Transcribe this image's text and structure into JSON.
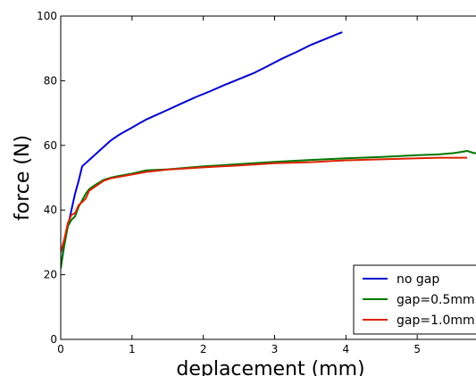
{
  "chart_data": {
    "type": "line",
    "xlabel": "deplacement (mm)",
    "ylabel": "force (N)",
    "xlim": [
      0,
      6
    ],
    "ylim": [
      0,
      100
    ],
    "x_ticks": [
      "0",
      "1",
      "2",
      "3",
      "4",
      "5"
    ],
    "y_ticks": [
      "0",
      "20",
      "40",
      "60",
      "80",
      "100"
    ],
    "grid": false,
    "legend_position": "bottom-right",
    "series": [
      {
        "name": "no gap",
        "color": "#0000cc",
        "x": [
          0,
          0.05,
          0.1,
          0.15,
          0.2,
          0.25,
          0.3,
          0.35,
          0.4,
          0.5,
          0.6,
          0.7,
          0.8,
          0.9,
          1.0,
          1.1,
          1.2,
          1.3,
          1.5,
          1.7,
          1.9,
          2.1,
          2.3,
          2.5,
          2.7,
          2.9,
          3.1,
          3.3,
          3.5,
          3.7,
          3.9,
          3.95
        ],
        "y": [
          22,
          30,
          35,
          40,
          45,
          49,
          53.5,
          54.5,
          55.5,
          57.5,
          59.5,
          61.5,
          63,
          64.3,
          65.5,
          66.8,
          68,
          69,
          71,
          73,
          75,
          76.8,
          78.7,
          80.5,
          82.3,
          84.5,
          86.8,
          88.8,
          91,
          92.8,
          94.6,
          95
        ]
      },
      {
        "name": "gap=0.5mm",
        "color": "#007700",
        "x": [
          0,
          0.05,
          0.1,
          0.15,
          0.2,
          0.25,
          0.3,
          0.35,
          0.4,
          0.5,
          0.6,
          0.7,
          0.8,
          1.0,
          1.2,
          1.5,
          2.0,
          2.5,
          3.0,
          3.5,
          4.0,
          4.5,
          5.0,
          5.3,
          5.5,
          5.6,
          5.7,
          5.8,
          5.9
        ],
        "y": [
          22,
          29,
          35,
          37,
          38,
          41,
          43,
          45,
          46.5,
          48,
          49.3,
          50,
          50.5,
          51.3,
          52.3,
          52.6,
          53.5,
          54.2,
          54.9,
          55.5,
          56,
          56.4,
          57,
          57.2,
          57.6,
          57.9,
          58.3,
          57.6,
          57.8
        ]
      },
      {
        "name": "gap=1.0mm",
        "color": "#dd2200",
        "x": [
          0,
          0.05,
          0.1,
          0.15,
          0.2,
          0.25,
          0.3,
          0.35,
          0.4,
          0.5,
          0.6,
          0.7,
          0.8,
          1.0,
          1.2,
          1.5,
          2.0,
          2.5,
          3.0,
          3.5,
          4.0,
          4.5,
          5.0,
          5.3,
          5.5,
          5.6,
          5.7
        ],
        "y": [
          27,
          31,
          36,
          38.5,
          39,
          41.5,
          42.5,
          43.5,
          46,
          47.5,
          49,
          49.8,
          50.2,
          51,
          51.8,
          52.5,
          53.2,
          53.8,
          54.5,
          54.8,
          55.4,
          55.7,
          56,
          56.2,
          56.2,
          56.2,
          56.2
        ]
      }
    ]
  }
}
